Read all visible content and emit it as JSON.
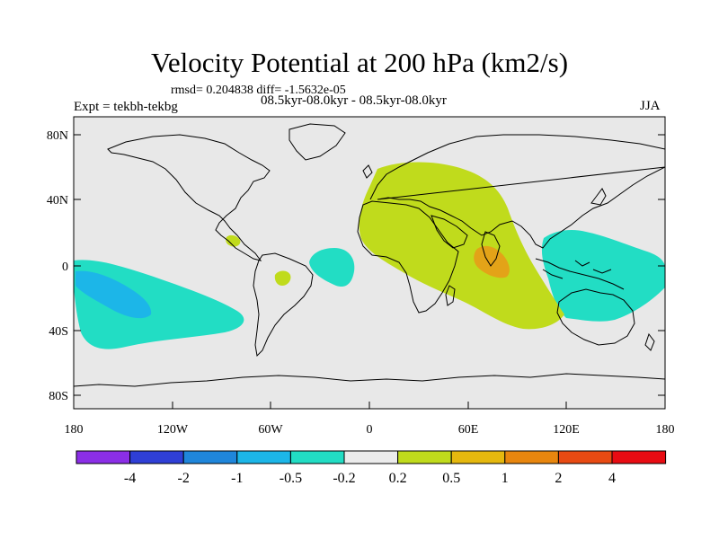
{
  "title": "Velocity Potential at 200 hPa (km2/s)",
  "stats": "rmsd= 0.204838 diff= -1.5632e-05",
  "expt": "Expt = tekbh-tekbg",
  "period": "08.5kyr-08.0kyr - 08.5kyr-08.0kyr",
  "season": "JJA",
  "lat_labels": [
    "80N",
    "40N",
    "0",
    "40S",
    "80S"
  ],
  "lon_labels": [
    "180",
    "120W",
    "60W",
    "0",
    "60E",
    "120E",
    "180"
  ],
  "colorbar": {
    "colors": [
      "#8b2ee6",
      "#2f3fd6",
      "#1f86db",
      "#1cb6e8",
      "#22ddc4",
      "#ececec",
      "#c0db1c",
      "#e5b80e",
      "#e8860e",
      "#e84a12",
      "#e80c12"
    ],
    "labels": [
      "-4",
      "-2",
      "-1",
      "-0.5",
      "-0.2",
      "0.2",
      "0.5",
      "1",
      "2",
      "4"
    ]
  },
  "colors": {
    "background": "#e8e8e8",
    "positive_weak": "#c0db1c",
    "positive_mid": "#e3a318",
    "negative_weak": "#22ddc4",
    "negative_mid": "#1cb6e8"
  }
}
